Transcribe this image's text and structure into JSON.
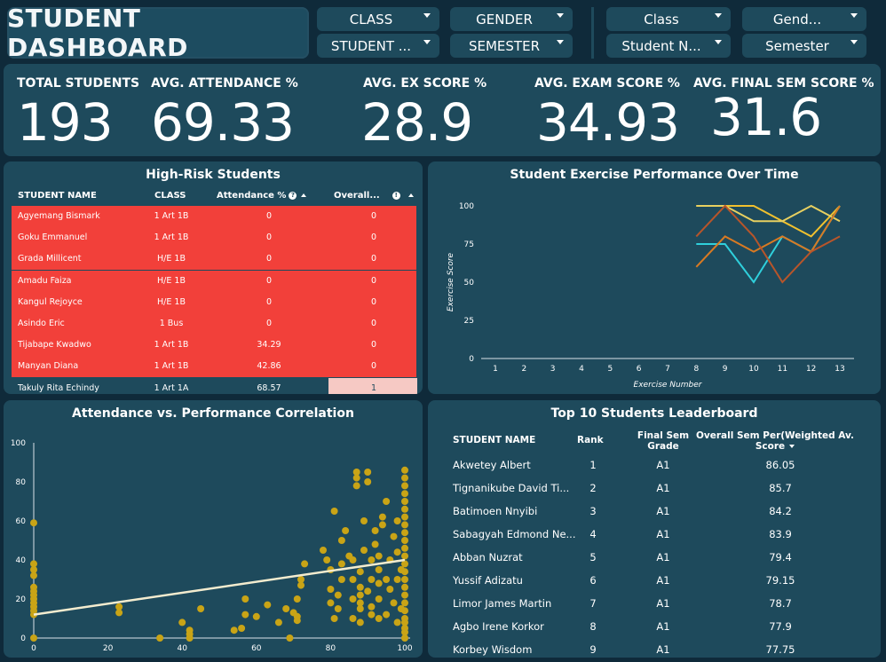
{
  "header": {
    "title": "STUDENT DASHBOARD",
    "slicers_left": [
      {
        "label": "CLASS"
      },
      {
        "label": "GENDER"
      },
      {
        "label": "STUDENT ..."
      },
      {
        "label": "SEMESTER"
      }
    ],
    "slicers_right": [
      {
        "label": "Class"
      },
      {
        "label": "Gend..."
      },
      {
        "label": "Student N..."
      },
      {
        "label": "Semester"
      }
    ]
  },
  "kpis": [
    {
      "label": "TOTAL STUDENTS",
      "value": "193"
    },
    {
      "label": "AVG. ATTENDANCE %",
      "value": "69.33"
    },
    {
      "label": "AVG. EX SCORE %",
      "value": "28.9"
    },
    {
      "label": "AVG. EXAM SCORE %",
      "value": "34.93"
    },
    {
      "label": "AVG. FINAL SEM SCORE %",
      "value": "31.6"
    }
  ],
  "high_risk": {
    "title": "High-Risk Students",
    "columns": [
      "STUDENT NAME",
      "CLASS",
      "Attendance %",
      "Overall..."
    ],
    "rows": [
      {
        "name": "Agyemang Bismark",
        "class": "1 Art 1B",
        "attendance": "0",
        "overall": "0"
      },
      {
        "name": "Goku Emmanuel",
        "class": "1 Art 1B",
        "attendance": "0",
        "overall": "0"
      },
      {
        "name": "Grada Millicent",
        "class": "H/E 1B",
        "attendance": "0",
        "overall": "0"
      },
      {
        "name": "Amadu Faiza",
        "class": "H/E 1B",
        "attendance": "0",
        "overall": "0"
      },
      {
        "name": "Kangul Rejoyce",
        "class": "H/E 1B",
        "attendance": "0",
        "overall": "0"
      },
      {
        "name": "Asindo Eric",
        "class": "1 Bus",
        "attendance": "0",
        "overall": "0"
      },
      {
        "name": "Tijabape Kwadwo",
        "class": "1 Art 1B",
        "attendance": "34.29",
        "overall": "0"
      },
      {
        "name": "Manyan Diana",
        "class": "1 Art 1B",
        "attendance": "42.86",
        "overall": "0"
      },
      {
        "name": "Takuly Rita Echindy",
        "class": "1 Art 1A",
        "attendance": "68.57",
        "overall": "1"
      }
    ],
    "colors": {
      "risk": "#f2403a",
      "low_risk": "#f6c9c4"
    }
  },
  "chart_data": [
    {
      "type": "line",
      "title": "Student Exercise Performance Over Time",
      "xlabel": "Exercise Number",
      "ylabel": "Exercise Score",
      "x": [
        1,
        2,
        3,
        4,
        5,
        6,
        7,
        8,
        9,
        10,
        11,
        12,
        13
      ],
      "ylim": [
        0,
        100
      ],
      "yticks": [
        0,
        25,
        50,
        75,
        100
      ],
      "series": [
        {
          "color": "#f2c12e",
          "points": [
            [
              8,
              100
            ],
            [
              9,
              100
            ],
            [
              10,
              100
            ],
            [
              11,
              90
            ],
            [
              12,
              80
            ],
            [
              13,
              100
            ]
          ]
        },
        {
          "color": "#e8d060",
          "points": [
            [
              8,
              100
            ],
            [
              9,
              100
            ],
            [
              10,
              90
            ],
            [
              11,
              90
            ],
            [
              12,
              100
            ],
            [
              13,
              90
            ]
          ]
        },
        {
          "color": "#2fd0dc",
          "points": [
            [
              8,
              75
            ],
            [
              9,
              75
            ],
            [
              10,
              50
            ],
            [
              11,
              80
            ],
            [
              12,
              70
            ],
            [
              13,
              100
            ]
          ]
        },
        {
          "color": "#d97a22",
          "points": [
            [
              8,
              60
            ],
            [
              9,
              80
            ],
            [
              10,
              70
            ],
            [
              11,
              80
            ],
            [
              12,
              70
            ],
            [
              13,
              100
            ]
          ]
        },
        {
          "color": "#b8552a",
          "points": [
            [
              8,
              80
            ],
            [
              9,
              100
            ],
            [
              10,
              80
            ],
            [
              11,
              50
            ],
            [
              12,
              70
            ],
            [
              13,
              80
            ]
          ]
        }
      ]
    },
    {
      "type": "scatter",
      "title": "Attendance vs. Performance Correlation",
      "xlim": [
        0,
        100
      ],
      "ylim": [
        0,
        100
      ],
      "xticks": [
        0,
        20,
        40,
        60,
        80,
        100
      ],
      "yticks": [
        0,
        20,
        40,
        60,
        80,
        100
      ],
      "point_color": "#c9a416",
      "trend_color": "#f3eccf",
      "trend": [
        [
          0,
          12
        ],
        [
          100,
          40
        ]
      ],
      "points": [
        [
          0,
          0
        ],
        [
          0,
          12
        ],
        [
          0,
          14
        ],
        [
          0,
          16
        ],
        [
          0,
          18
        ],
        [
          0,
          20
        ],
        [
          0,
          22
        ],
        [
          0,
          24
        ],
        [
          0,
          26
        ],
        [
          0,
          32
        ],
        [
          0,
          35
        ],
        [
          0,
          38
        ],
        [
          0,
          59
        ],
        [
          23,
          13
        ],
        [
          23,
          16
        ],
        [
          34,
          0
        ],
        [
          40,
          8
        ],
        [
          42,
          0
        ],
        [
          42,
          2
        ],
        [
          42,
          4
        ],
        [
          45,
          15
        ],
        [
          54,
          4
        ],
        [
          56,
          5
        ],
        [
          57,
          12
        ],
        [
          57,
          20
        ],
        [
          60,
          11
        ],
        [
          63,
          17
        ],
        [
          66,
          8
        ],
        [
          68,
          15
        ],
        [
          69,
          0
        ],
        [
          70,
          13
        ],
        [
          71,
          9
        ],
        [
          71,
          11
        ],
        [
          71,
          20
        ],
        [
          72,
          30
        ],
        [
          72,
          27
        ],
        [
          73,
          38
        ],
        [
          78,
          45
        ],
        [
          79,
          40
        ],
        [
          80,
          25
        ],
        [
          80,
          35
        ],
        [
          80,
          18
        ],
        [
          81,
          65
        ],
        [
          81,
          10
        ],
        [
          82,
          15
        ],
        [
          82,
          22
        ],
        [
          83,
          30
        ],
        [
          83,
          38
        ],
        [
          83,
          50
        ],
        [
          84,
          55
        ],
        [
          85,
          42
        ],
        [
          86,
          10
        ],
        [
          86,
          30
        ],
        [
          86,
          40
        ],
        [
          86,
          20
        ],
        [
          87,
          82
        ],
        [
          87,
          78
        ],
        [
          87,
          85
        ],
        [
          88,
          8
        ],
        [
          88,
          15
        ],
        [
          88,
          18
        ],
        [
          88,
          22
        ],
        [
          88,
          26
        ],
        [
          88,
          34
        ],
        [
          89,
          45
        ],
        [
          89,
          60
        ],
        [
          90,
          85
        ],
        [
          90,
          80
        ],
        [
          90,
          24
        ],
        [
          91,
          12
        ],
        [
          91,
          16
        ],
        [
          91,
          30
        ],
        [
          91,
          40
        ],
        [
          92,
          55
        ],
        [
          92,
          48
        ],
        [
          93,
          10
        ],
        [
          93,
          20
        ],
        [
          93,
          28
        ],
        [
          93,
          35
        ],
        [
          93,
          42
        ],
        [
          94,
          62
        ],
        [
          94,
          58
        ],
        [
          95,
          70
        ],
        [
          95,
          30
        ],
        [
          95,
          12
        ],
        [
          96,
          25
        ],
        [
          96,
          40
        ],
        [
          97,
          52
        ],
        [
          97,
          18
        ],
        [
          98,
          60
        ],
        [
          98,
          8
        ],
        [
          98,
          30
        ],
        [
          98,
          44
        ],
        [
          99,
          15
        ],
        [
          99,
          35
        ],
        [
          100,
          5
        ],
        [
          100,
          10
        ],
        [
          100,
          14
        ],
        [
          100,
          18
        ],
        [
          100,
          22
        ],
        [
          100,
          26
        ],
        [
          100,
          30
        ],
        [
          100,
          34
        ],
        [
          100,
          38
        ],
        [
          100,
          42
        ],
        [
          100,
          46
        ],
        [
          100,
          50
        ],
        [
          100,
          54
        ],
        [
          100,
          58
        ],
        [
          100,
          62
        ],
        [
          100,
          66
        ],
        [
          100,
          70
        ],
        [
          100,
          74
        ],
        [
          100,
          78
        ],
        [
          100,
          82
        ],
        [
          100,
          86
        ],
        [
          100,
          0
        ],
        [
          100,
          3
        ],
        [
          100,
          8
        ]
      ]
    }
  ],
  "leaderboard": {
    "title": "Top 10 Students Leaderboard",
    "columns": {
      "name": "STUDENT NAME",
      "rank": "Rank",
      "grade_line1": "Final Sem",
      "grade_line2": "Grade",
      "score_line1": "Overall Sem Per(Weighted Av.",
      "score_line2": "Score"
    },
    "rows": [
      {
        "name": "Akwetey Albert",
        "rank": "1",
        "grade": "A1",
        "score": "86.05"
      },
      {
        "name": "Tignanikube David Ti...",
        "rank": "2",
        "grade": "A1",
        "score": "85.7"
      },
      {
        "name": "Batimoen Nnyibi",
        "rank": "3",
        "grade": "A1",
        "score": "84.2"
      },
      {
        "name": "Sabagyah Edmond Ne...",
        "rank": "4",
        "grade": "A1",
        "score": "83.9"
      },
      {
        "name": "Abban Nuzrat",
        "rank": "5",
        "grade": "A1",
        "score": "79.4"
      },
      {
        "name": "Yussif Adizatu",
        "rank": "6",
        "grade": "A1",
        "score": "79.15"
      },
      {
        "name": "Limor James Martin",
        "rank": "7",
        "grade": "A1",
        "score": "78.7"
      },
      {
        "name": "Agbo Irene Korkor",
        "rank": "8",
        "grade": "A1",
        "score": "77.9"
      },
      {
        "name": "Korbey Wisdom",
        "rank": "9",
        "grade": "A1",
        "score": "77.75"
      }
    ]
  }
}
